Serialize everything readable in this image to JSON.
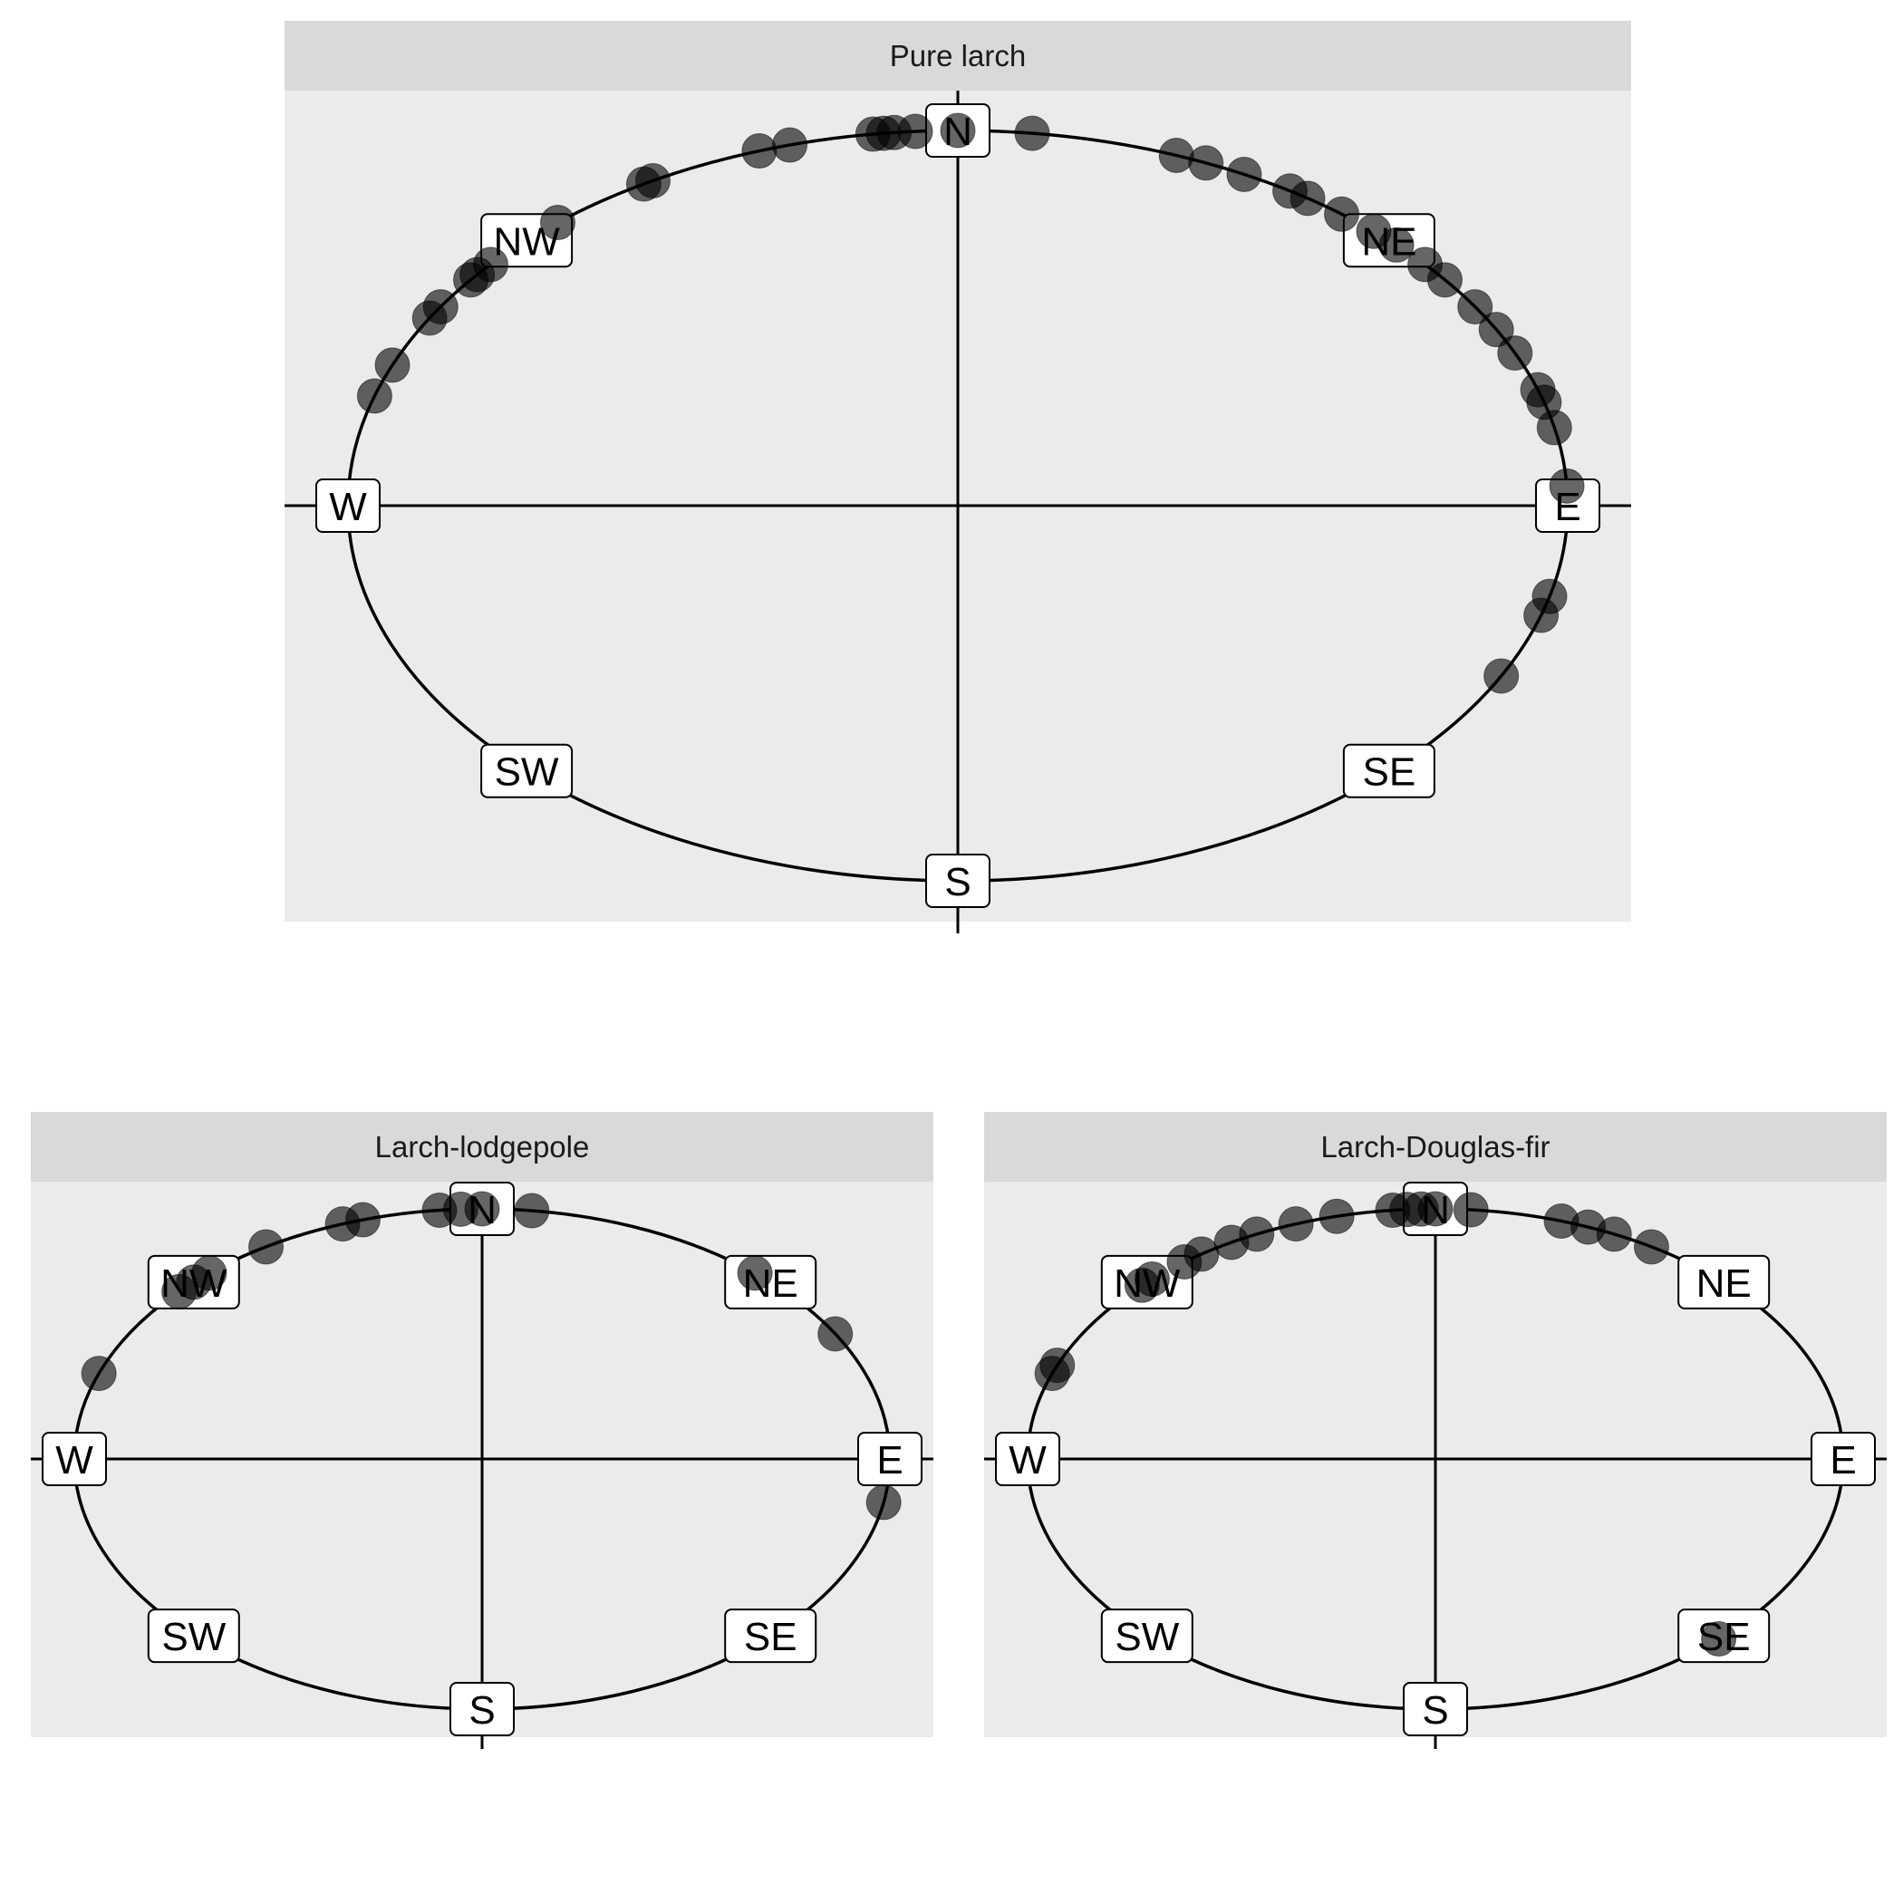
{
  "chart_data": [
    {
      "type": "scatter",
      "coordinate_system": "polar",
      "facet": "Pure larch",
      "title": "Pure larch",
      "directions": [
        "N",
        "NE",
        "E",
        "SE",
        "S",
        "SW",
        "W",
        "NW"
      ],
      "point_color": "#000000",
      "point_alpha": 0.6,
      "aspect_deg": [
        0,
        7,
        21,
        24,
        28,
        33,
        35,
        39,
        43,
        46,
        50,
        53,
        58,
        62,
        66,
        72,
        74,
        78,
        87,
        104,
        107,
        117,
        287,
        292,
        300,
        302,
        307,
        308,
        310,
        319,
        329,
        330,
        341,
        344,
        352,
        353,
        354,
        356
      ]
    },
    {
      "type": "scatter",
      "coordinate_system": "polar",
      "facet": "Larch-lodgepole",
      "title": "Larch-lodgepole",
      "directions": [
        "N",
        "NE",
        "E",
        "SE",
        "S",
        "SW",
        "W",
        "NW"
      ],
      "point_color": "#000000",
      "point_alpha": 0.6,
      "aspect_deg": [
        0,
        7,
        42,
        60,
        100,
        290,
        312,
        315,
        318,
        328,
        340,
        343,
        354,
        357
      ]
    },
    {
      "type": "scatter",
      "coordinate_system": "polar",
      "facet": "Larch-Douglas-fir",
      "title": "Larch-Douglas-fir",
      "directions": [
        "N",
        "NE",
        "E",
        "SE",
        "S",
        "SW",
        "W",
        "NW"
      ],
      "point_color": "#000000",
      "point_alpha": 0.6,
      "aspect_deg": [
        0,
        5,
        18,
        22,
        26,
        32,
        136,
        290,
        292,
        314,
        316,
        322,
        325,
        330,
        334,
        340,
        346,
        354,
        356,
        358
      ]
    }
  ]
}
